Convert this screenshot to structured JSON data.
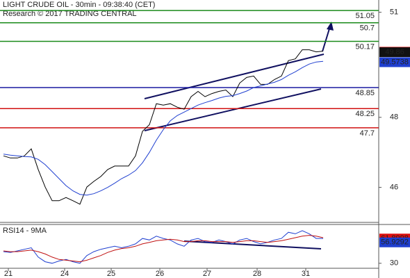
{
  "chart_data": [
    {
      "type": "line",
      "title": "LIGHT CRUDE OIL - 30min - 09:38:40 (CET)",
      "subtitle": "Research © 2017 TRADING CENTRAL",
      "x": [
        0,
        1,
        2,
        3,
        4,
        5,
        6,
        7,
        8,
        9,
        10,
        11,
        12,
        13,
        14,
        15,
        16,
        17,
        18,
        19,
        20,
        21,
        22,
        23,
        24,
        25,
        26,
        27,
        28,
        29,
        30,
        31,
        32,
        33,
        34,
        35,
        36,
        37,
        38,
        39,
        40,
        41,
        42,
        43,
        44,
        45,
        46
      ],
      "xlim": [
        0,
        54
      ],
      "ylim": [
        45.0,
        51.35
      ],
      "yticks": [
        51,
        48,
        46
      ],
      "series": [
        {
          "color": "#000000",
          "values": [
            46.9,
            46.84,
            46.84,
            46.9,
            47.1,
            46.51,
            46.01,
            45.62,
            45.62,
            45.71,
            45.62,
            45.52,
            46.01,
            46.17,
            46.31,
            46.51,
            46.61,
            46.61,
            46.61,
            46.9,
            47.6,
            47.79,
            48.39,
            48.35,
            48.39,
            48.29,
            48.23,
            48.59,
            48.74,
            48.59,
            48.68,
            48.74,
            48.78,
            48.59,
            48.98,
            49.14,
            49.18,
            48.94,
            48.94,
            49.08,
            49.18,
            49.62,
            49.67,
            49.93,
            49.93,
            49.87,
            49.89
          ]
        },
        {
          "color": "#1f3fd0",
          "values": [
            46.95,
            46.92,
            46.9,
            46.88,
            46.87,
            46.8,
            46.65,
            46.45,
            46.25,
            46.05,
            45.9,
            45.8,
            45.78,
            45.82,
            45.9,
            46.0,
            46.12,
            46.25,
            46.35,
            46.48,
            46.7,
            47.0,
            47.35,
            47.65,
            47.9,
            48.05,
            48.15,
            48.25,
            48.35,
            48.42,
            48.48,
            48.55,
            48.6,
            48.62,
            48.68,
            48.75,
            48.85,
            48.9,
            48.95,
            49.0,
            49.08,
            49.2,
            49.3,
            49.42,
            49.52,
            49.58,
            49.6
          ]
        }
      ],
      "levels": [
        {
          "value": 51.05,
          "color": "#1a8a1a"
        },
        {
          "value": 50.7,
          "color": "#1a8a1a"
        },
        {
          "value": 50.17,
          "color": "#1a8a1a"
        },
        {
          "value": 48.85,
          "color": "#1a1aa0"
        },
        {
          "value": 48.25,
          "color": "#d01010"
        },
        {
          "value": 47.7,
          "color": "#d01010"
        }
      ],
      "price_markers": [
        {
          "value": 49.873,
          "color": "#e01010"
        },
        {
          "value": 49.86,
          "color": "#111111"
        },
        {
          "value": 49.5738,
          "color": "#1f3fd0"
        }
      ]
    },
    {
      "type": "line",
      "title": "RSI14 - 9MA",
      "x": [
        0,
        1,
        2,
        3,
        4,
        5,
        6,
        7,
        8,
        9,
        10,
        11,
        12,
        13,
        14,
        15,
        16,
        17,
        18,
        19,
        20,
        21,
        22,
        23,
        24,
        25,
        26,
        27,
        28,
        29,
        30,
        31,
        32,
        33,
        34,
        35,
        36,
        37,
        38,
        39,
        40,
        41,
        42,
        43,
        44,
        45,
        46
      ],
      "xlim": [
        0,
        54
      ],
      "xticks": [
        {
          "value": 0.7,
          "label": "21"
        },
        {
          "value": 8.8,
          "label": "24"
        },
        {
          "value": 15.5,
          "label": "25"
        },
        {
          "value": 22.5,
          "label": "26"
        },
        {
          "value": 29.3,
          "label": "27"
        },
        {
          "value": 36.5,
          "label": "28"
        },
        {
          "value": 43.5,
          "label": "31"
        }
      ],
      "ylim": [
        20,
        80
      ],
      "yticks": [
        30
      ],
      "series": [
        {
          "color": "#1f3fd0",
          "values": [
            45,
            44,
            46,
            48,
            50,
            38,
            32,
            30,
            33,
            35,
            32,
            30,
            40,
            45,
            48,
            50,
            52,
            50,
            52,
            55,
            62,
            60,
            65,
            62,
            60,
            55,
            52,
            60,
            62,
            58,
            57,
            60,
            58,
            55,
            60,
            62,
            58,
            55,
            57,
            60,
            62,
            70,
            68,
            72,
            68,
            62,
            62
          ]
        },
        {
          "color": "#c01010",
          "values": [
            46,
            45,
            45,
            46,
            47,
            45,
            42,
            38,
            35,
            34,
            33,
            32,
            34,
            37,
            40,
            44,
            47,
            49,
            50,
            52,
            55,
            57,
            59,
            60,
            61,
            60,
            58,
            58,
            59,
            59,
            58,
            58,
            58,
            57,
            58,
            59,
            59,
            58,
            57,
            58,
            59,
            61,
            63,
            65,
            66,
            65,
            63
          ]
        }
      ],
      "price_markers": [
        {
          "value": 61.8998,
          "color": "#e01010"
        },
        {
          "value": 56.9292,
          "color": "#1f3fd0"
        }
      ]
    }
  ]
}
